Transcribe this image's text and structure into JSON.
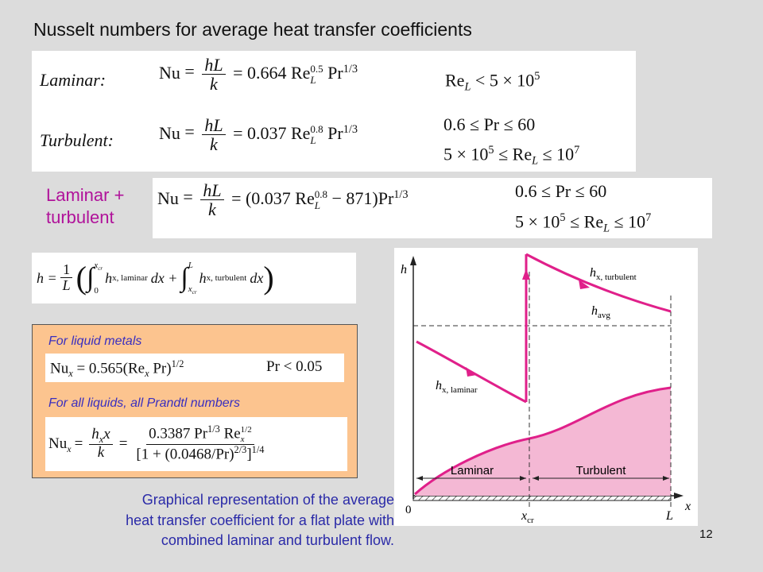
{
  "slide": {
    "title": "Nusselt numbers for average heat transfer coefficients",
    "page_number": "12"
  },
  "box1": {
    "laminar_label": "Laminar:",
    "laminar_rhs": "= 0.664 Re",
    "laminar_exp": "0.5",
    "laminar_pr": "Pr",
    "laminar_pr_exp": "1/3",
    "laminar_cond": "Re",
    "laminar_cond_rhs": "< 5 × 10",
    "laminar_cond_exp": "5",
    "turbulent_label": "Turbulent:",
    "turbulent_rhs": "= 0.037 Re",
    "turbulent_exp": "0.8",
    "turbulent_pr": "Pr",
    "turbulent_pr_exp": "1/3",
    "turb_cond1": "0.6 ≤ Pr ≤ 60",
    "turb_cond2_a": "5 × 10",
    "turb_cond2_exp": "5",
    "turb_cond2_b": "≤ Re",
    "turb_cond2_c": "≤ 10",
    "turb_cond2_exp2": "7",
    "nu": "Nu",
    "num": "hL",
    "den": "k",
    "sub_L": "L"
  },
  "box2": {
    "label_line1": "Laminar +",
    "label_line2": "turbulent",
    "rhs_a": "= (0.037 Re",
    "rhs_exp": "0.8",
    "rhs_b": "− 871)Pr",
    "rhs_pr_exp": "1/3",
    "cond1": "0.6 ≤ Pr ≤ 60",
    "cond2_a": "5 × 10",
    "cond2_exp": "5",
    "cond2_b": "≤ Re",
    "cond2_c": "≤ 10",
    "cond2_exp2": "7"
  },
  "box3": {
    "h_eq": "h =",
    "one": "1",
    "L": "L",
    "lower0": "0",
    "upper_xcr": "x",
    "upper_xcr_sub": "cr",
    "term1_h": "h",
    "term1_sub": "x, laminar",
    "dx1": "dx +",
    "upper_L": "L",
    "lower_xcr": "x",
    "lower_xcr_sub": "cr",
    "term2_h": "h",
    "term2_sub": "x, turbulent",
    "dx2": "dx"
  },
  "liquids": {
    "label_metals": "For liquid metals",
    "metals_eq": "Nu",
    "metals_sub": "x",
    "metals_rhs": "= 0.565(Re",
    "metals_rhs2": "Pr)",
    "metals_exp": "1/2",
    "metals_cond": "Pr < 0.05",
    "label_all": "For all liquids, all Prandtl numbers",
    "all_nu": "Nu",
    "all_nu_sub": "x",
    "all_num1": "h",
    "all_num1_sub": "x",
    "all_num1_b": "x",
    "all_den1": "k",
    "all_num2": "0.3387 Pr",
    "all_num2_exp": "1/3",
    "all_num2_re": "Re",
    "all_num2_re_sub": "x",
    "all_num2_re_exp": "1/2",
    "all_den2": "[1 + (0.0468/Pr)",
    "all_den2_exp": "2/3",
    "all_den2_b": "]",
    "all_den2_exp2": "1/4"
  },
  "figure": {
    "y_axis": "h",
    "x_axis": "x",
    "origin": "0",
    "h_turb": "h",
    "h_turb_sub": "x, turbulent",
    "h_avg": "h",
    "h_avg_sub": "avg",
    "h_lam": "h",
    "h_lam_sub": "x, laminar",
    "region_laminar": "Laminar",
    "region_turbulent": "Turbulent",
    "x_cr": "x",
    "x_cr_sub": "cr",
    "L_label": "L",
    "curve_color": "#e0208a",
    "fill_color": "#f4b8d4"
  },
  "caption": {
    "line1": "Graphical representation of the average",
    "line2": "heat transfer coefficient for a flat plate with",
    "line3": "combined laminar and turbulent flow."
  }
}
